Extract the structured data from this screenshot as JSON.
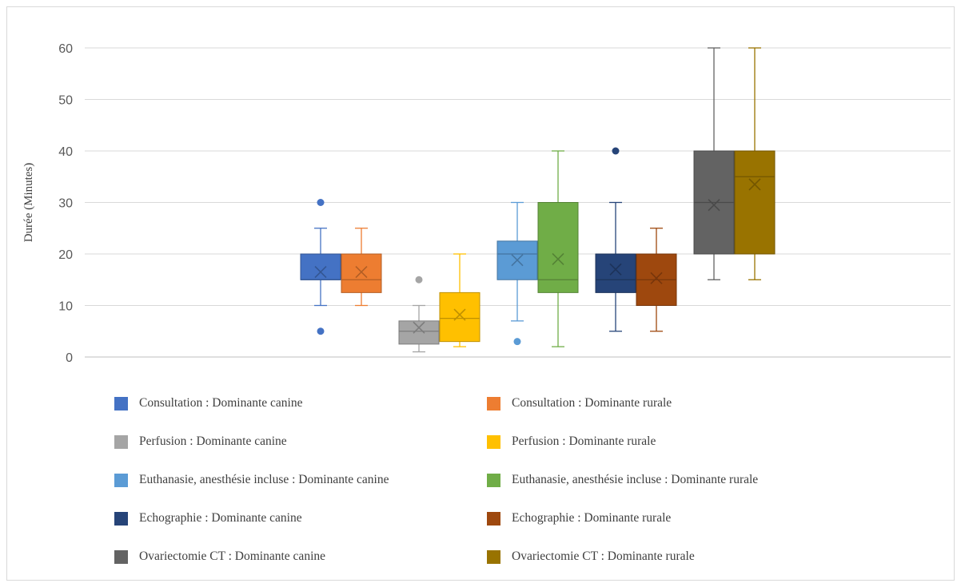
{
  "chart_data": {
    "type": "boxplot",
    "title": "",
    "xlabel": "",
    "ylabel": "Durée (Minutes)",
    "ylim": [
      0,
      60
    ],
    "yticks": [
      0,
      10,
      20,
      30,
      40,
      50,
      60
    ],
    "grid": true,
    "legend_position": "bottom",
    "series": [
      {
        "name": "Consultation : Dominante canine",
        "color": "#4472C4",
        "min": 10,
        "q1": 15,
        "median": 15,
        "q3": 20,
        "max": 25,
        "mean": 16.5,
        "outliers": [
          30,
          5
        ]
      },
      {
        "name": "Consultation : Dominante rurale",
        "color": "#ED7D31",
        "min": 10,
        "q1": 12.5,
        "median": 15,
        "q3": 20,
        "max": 25,
        "mean": 16.5,
        "outliers": []
      },
      {
        "name": "Perfusion : Dominante canine",
        "color": "#A5A5A5",
        "min": 1,
        "q1": 2.5,
        "median": 5,
        "q3": 7,
        "max": 10,
        "mean": 5.7,
        "outliers": [
          15
        ]
      },
      {
        "name": "Perfusion : Dominante rurale",
        "color": "#FFC000",
        "min": 2,
        "q1": 3,
        "median": 7.5,
        "q3": 12.5,
        "max": 20,
        "mean": 8.2,
        "outliers": []
      },
      {
        "name": "Euthanasie, anesthésie incluse : Dominante canine",
        "color": "#5B9BD5",
        "min": 7,
        "q1": 15,
        "median": 20,
        "q3": 22.5,
        "max": 30,
        "mean": 18.8,
        "outliers": [
          3
        ]
      },
      {
        "name": "Euthanasie, anesthésie incluse : Dominante rurale",
        "color": "#70AD47",
        "min": 2,
        "q1": 12.5,
        "median": 15,
        "q3": 30,
        "max": 40,
        "mean": 19,
        "outliers": []
      },
      {
        "name": "Echographie : Dominante canine",
        "color": "#264478",
        "min": 5,
        "q1": 12.5,
        "median": 15,
        "q3": 20,
        "max": 30,
        "mean": 17,
        "outliers": [
          40
        ]
      },
      {
        "name": "Echographie : Dominante rurale",
        "color": "#9E480E",
        "min": 5,
        "q1": 10,
        "median": 15,
        "q3": 20,
        "max": 25,
        "mean": 15.3,
        "outliers": []
      },
      {
        "name": "Ovariectomie CT : Dominante canine",
        "color": "#636363",
        "min": 15,
        "q1": 20,
        "median": 30,
        "q3": 40,
        "max": 60,
        "mean": 29.5,
        "outliers": []
      },
      {
        "name": "Ovariectomie CT : Dominante rurale",
        "color": "#997300",
        "min": 15,
        "q1": 20,
        "median": 35,
        "q3": 40,
        "max": 60,
        "mean": 33.5,
        "outliers": []
      }
    ]
  }
}
